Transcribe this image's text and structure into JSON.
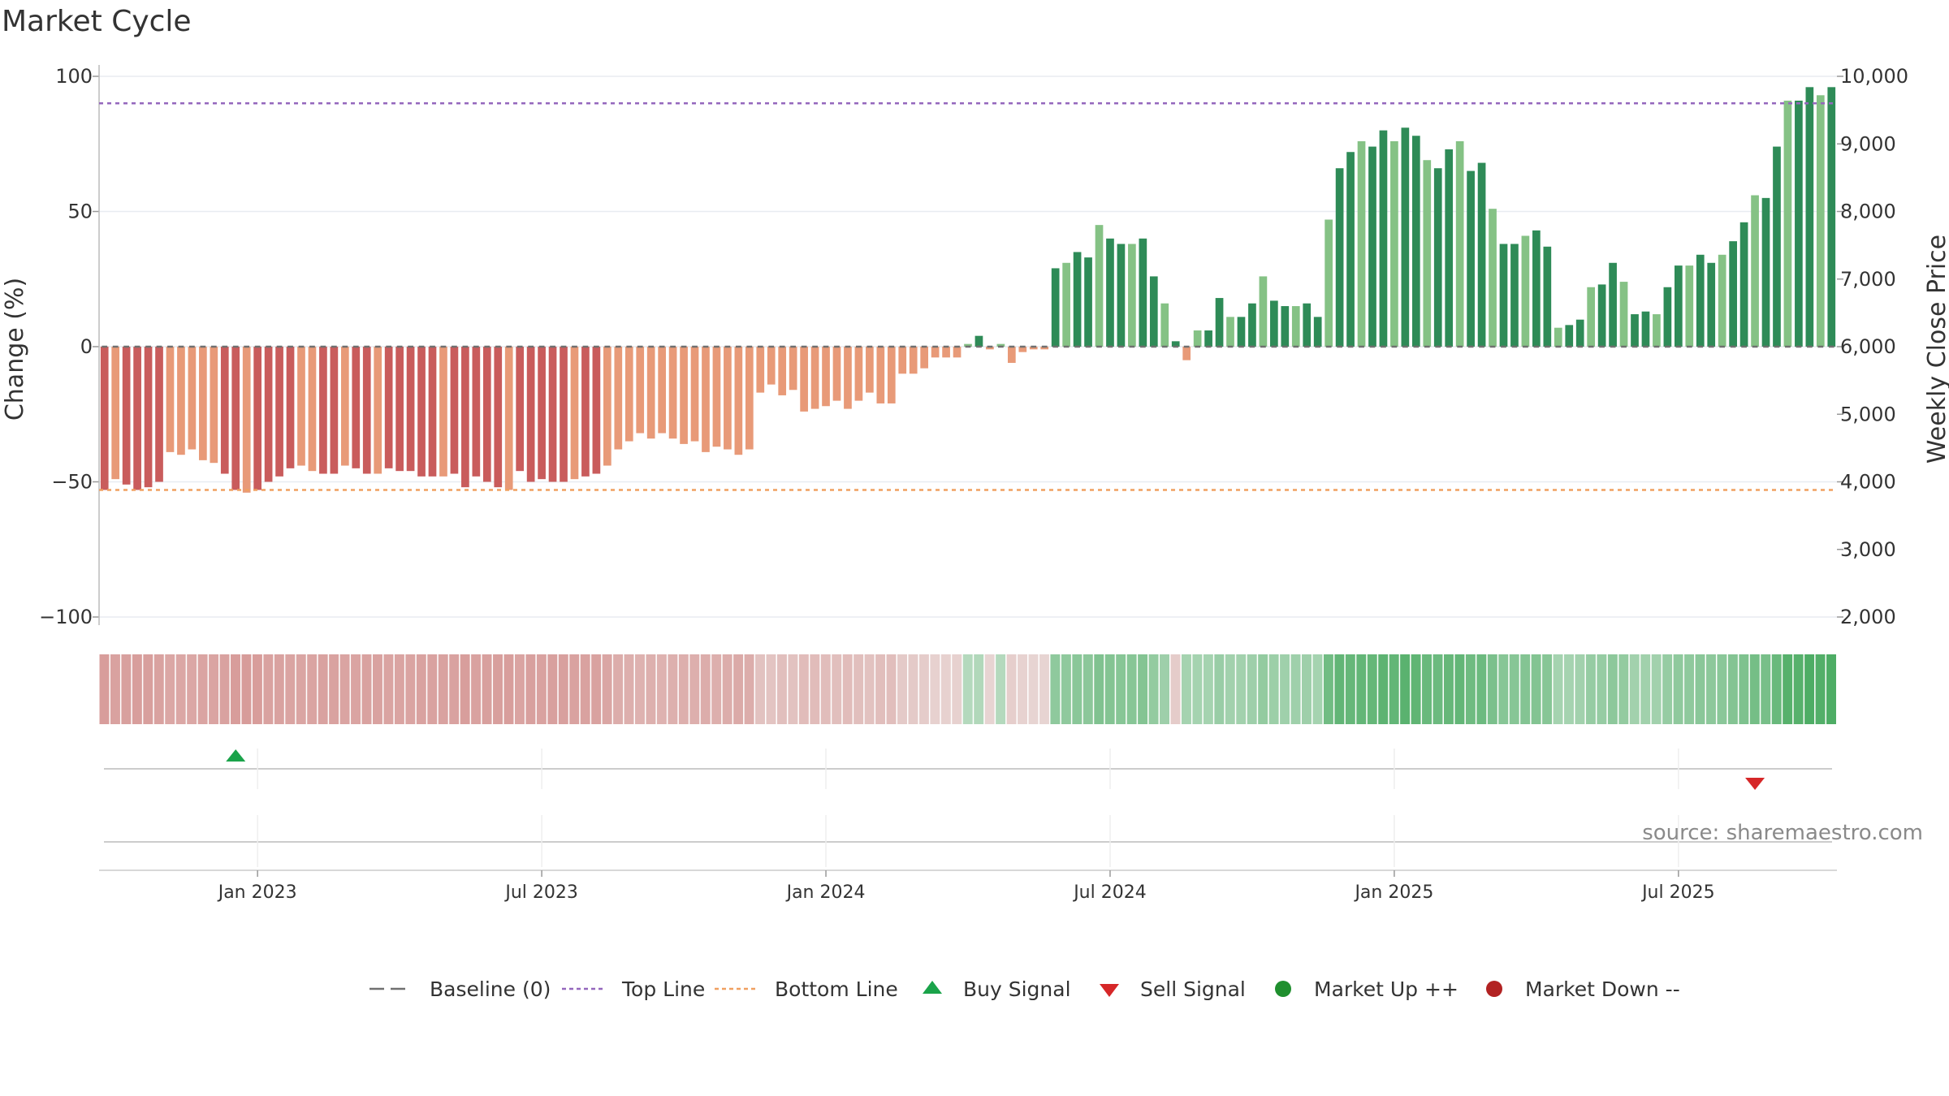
{
  "chart_data": {
    "type": "bar",
    "title": "Market Cycle",
    "ylabel": "Change (%)",
    "y2label": "Weekly Close Price",
    "ylim": [
      -100,
      100
    ],
    "y2lim": [
      2000,
      10000
    ],
    "yticks": [
      100,
      50,
      0,
      -50,
      -100
    ],
    "yticks_labels": [
      "100",
      "50",
      "0",
      "−50",
      "−100"
    ],
    "y2ticks": [
      10000,
      9000,
      8000,
      7000,
      6000,
      5000,
      4000,
      3000,
      2000
    ],
    "y2ticks_labels": [
      "10,000",
      "9,000",
      "8,000",
      "7,000",
      "6,000",
      "5,000",
      "4,000",
      "3,000",
      "2,000"
    ],
    "xticks": [
      {
        "label": "Jan 2023",
        "week": 14
      },
      {
        "label": "Jul 2023",
        "week": 40
      },
      {
        "label": "Jan 2024",
        "week": 66
      },
      {
        "label": "Jul 2024",
        "week": 92
      },
      {
        "label": "Jan 2025",
        "week": 118
      },
      {
        "label": "Jul 2025",
        "week": 144
      }
    ],
    "top_line": 90,
    "bottom_line": -53,
    "baseline": 0,
    "values": [
      -53,
      -49,
      -51,
      -53,
      -52,
      -50,
      -39,
      -40,
      -38,
      -42,
      -43,
      -47,
      -53,
      -54,
      -53,
      -50,
      -48,
      -45,
      -44,
      -46,
      -47,
      -47,
      -44,
      -45,
      -47,
      -47,
      -45,
      -46,
      -46,
      -48,
      -48,
      -48,
      -47,
      -52,
      -48,
      -50,
      -52,
      -53,
      -46,
      -50,
      -49,
      -50,
      -50,
      -49,
      -48,
      -47,
      -44,
      -38,
      -35,
      -32,
      -34,
      -32,
      -34,
      -36,
      -35,
      -39,
      -37,
      -38,
      -40,
      -38,
      -17,
      -14,
      -18,
      -16,
      -24,
      -23,
      -22,
      -20,
      -23,
      -20,
      -17,
      -21,
      -21,
      -10,
      -10,
      -8,
      -4,
      -4,
      -4,
      1,
      4,
      -1,
      1,
      -6,
      -2,
      -1,
      -1,
      29,
      31,
      35,
      33,
      45,
      40,
      38,
      38,
      40,
      26,
      16,
      2,
      -5,
      6,
      6,
      18,
      11,
      11,
      16,
      26,
      17,
      15,
      15,
      16,
      11,
      47,
      66,
      72,
      76,
      74,
      80,
      76,
      81,
      78,
      69,
      66,
      73,
      76,
      65,
      68,
      51,
      38,
      38,
      41,
      43,
      37,
      7,
      8,
      10,
      22,
      23,
      31,
      24,
      12,
      13,
      12,
      22,
      30,
      30,
      34,
      31,
      34,
      39,
      46,
      56,
      55,
      74,
      91,
      91,
      96,
      93,
      96
    ],
    "cycle_band": [
      -0.65,
      -0.6,
      -0.62,
      -0.64,
      -0.63,
      -0.6,
      -0.55,
      -0.55,
      -0.55,
      -0.58,
      -0.58,
      -0.6,
      -0.65,
      -0.66,
      -0.65,
      -0.6,
      -0.6,
      -0.58,
      -0.57,
      -0.58,
      -0.6,
      -0.6,
      -0.58,
      -0.58,
      -0.6,
      -0.6,
      -0.58,
      -0.58,
      -0.58,
      -0.6,
      -0.6,
      -0.6,
      -0.6,
      -0.64,
      -0.6,
      -0.62,
      -0.63,
      -0.64,
      -0.58,
      -0.62,
      -0.6,
      -0.62,
      -0.62,
      -0.6,
      -0.6,
      -0.6,
      -0.56,
      -0.5,
      -0.48,
      -0.45,
      -0.47,
      -0.45,
      -0.47,
      -0.48,
      -0.48,
      -0.5,
      -0.48,
      -0.5,
      -0.52,
      -0.5,
      -0.3,
      -0.28,
      -0.32,
      -0.3,
      -0.35,
      -0.35,
      -0.34,
      -0.32,
      -0.35,
      -0.32,
      -0.3,
      -0.33,
      -0.33,
      -0.22,
      -0.22,
      -0.2,
      -0.15,
      -0.15,
      -0.15,
      0.2,
      0.22,
      -0.12,
      0.2,
      -0.18,
      -0.14,
      -0.12,
      -0.12,
      0.45,
      0.45,
      0.48,
      0.47,
      0.55,
      0.52,
      0.5,
      0.5,
      0.52,
      0.42,
      0.35,
      -0.2,
      0.3,
      0.3,
      0.3,
      0.38,
      0.32,
      0.32,
      0.35,
      0.42,
      0.36,
      0.34,
      0.34,
      0.35,
      0.3,
      0.65,
      0.75,
      0.72,
      0.74,
      0.73,
      0.78,
      0.74,
      0.8,
      0.76,
      0.7,
      0.68,
      0.72,
      0.74,
      0.66,
      0.68,
      0.58,
      0.5,
      0.5,
      0.52,
      0.53,
      0.5,
      0.3,
      0.3,
      0.32,
      0.4,
      0.4,
      0.46,
      0.42,
      0.32,
      0.33,
      0.32,
      0.4,
      0.45,
      0.45,
      0.48,
      0.46,
      0.48,
      0.52,
      0.56,
      0.62,
      0.6,
      0.7,
      0.82,
      0.82,
      0.88,
      0.85,
      0.88
    ],
    "buy_signals": [
      {
        "week": 12
      }
    ],
    "sell_signals": [
      {
        "week": 151
      }
    ],
    "colors": {
      "bear_strong": "#c95c5c",
      "bear_light": "#e89a78",
      "bull_strong": "#2e8b57",
      "bull_light": "#85c285",
      "top_line": "#9467bd",
      "bottom_line": "#f0a060",
      "baseline": "#707070",
      "grid": "#e8ecf1",
      "buy": "#1aa34a",
      "sell": "#d62728",
      "market_up": "#1f8f2e",
      "market_down": "#b22222"
    },
    "legend_position": "bottom-center",
    "legend": [
      {
        "label": "Baseline (0)",
        "symbol": "dash"
      },
      {
        "label": "Top Line",
        "symbol": "dot-purple"
      },
      {
        "label": "Bottom Line",
        "symbol": "dot-orange"
      },
      {
        "label": "Buy Signal",
        "symbol": "triangle-up"
      },
      {
        "label": "Sell Signal",
        "symbol": "triangle-down"
      },
      {
        "label": "Market Up ++",
        "symbol": "circle-green"
      },
      {
        "label": "Market Down --",
        "symbol": "circle-red"
      }
    ],
    "source": "source: sharemaestro.com"
  }
}
